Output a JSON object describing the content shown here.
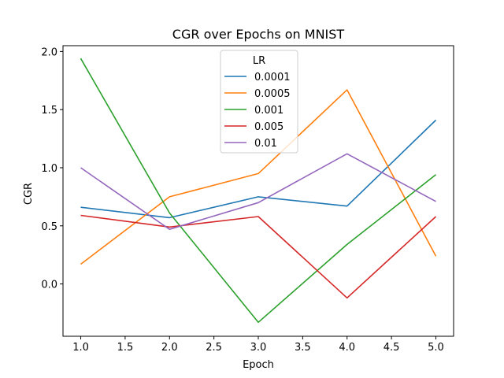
{
  "chart_data": {
    "type": "line",
    "title": "CGR over Epochs on MNIST",
    "xlabel": "Epoch",
    "ylabel": "CGR",
    "xlim": [
      0.8,
      5.2
    ],
    "ylim": [
      -0.45,
      2.05
    ],
    "xticks": [
      1.0,
      1.5,
      2.0,
      2.5,
      3.0,
      3.5,
      4.0,
      4.5,
      5.0
    ],
    "xtick_labels": [
      "1.0",
      "1.5",
      "2.0",
      "2.5",
      "3.0",
      "3.5",
      "4.0",
      "4.5",
      "5.0"
    ],
    "yticks": [
      0.0,
      0.5,
      1.0,
      1.5,
      2.0
    ],
    "ytick_labels": [
      "0.0",
      "0.5",
      "1.0",
      "1.5",
      "2.0"
    ],
    "grid": false,
    "legend_title": "LR",
    "legend_position": "top-center",
    "x": [
      1,
      2,
      3,
      4,
      5
    ],
    "series": [
      {
        "name": "0.0001",
        "color": "#1f77b4",
        "values": [
          0.66,
          0.57,
          0.75,
          0.67,
          1.41
        ]
      },
      {
        "name": "0.0005",
        "color": "#ff7f0e",
        "values": [
          0.17,
          0.75,
          0.95,
          1.67,
          0.24
        ]
      },
      {
        "name": "0.001",
        "color": "#2ca02c",
        "values": [
          1.94,
          0.61,
          -0.33,
          0.34,
          0.94
        ]
      },
      {
        "name": "0.005",
        "color": "#d62728",
        "values": [
          0.59,
          0.49,
          0.58,
          -0.12,
          0.58
        ]
      },
      {
        "name": "0.01",
        "color": "#9467bd",
        "values": [
          1.0,
          0.47,
          0.7,
          1.12,
          0.71
        ]
      }
    ]
  }
}
